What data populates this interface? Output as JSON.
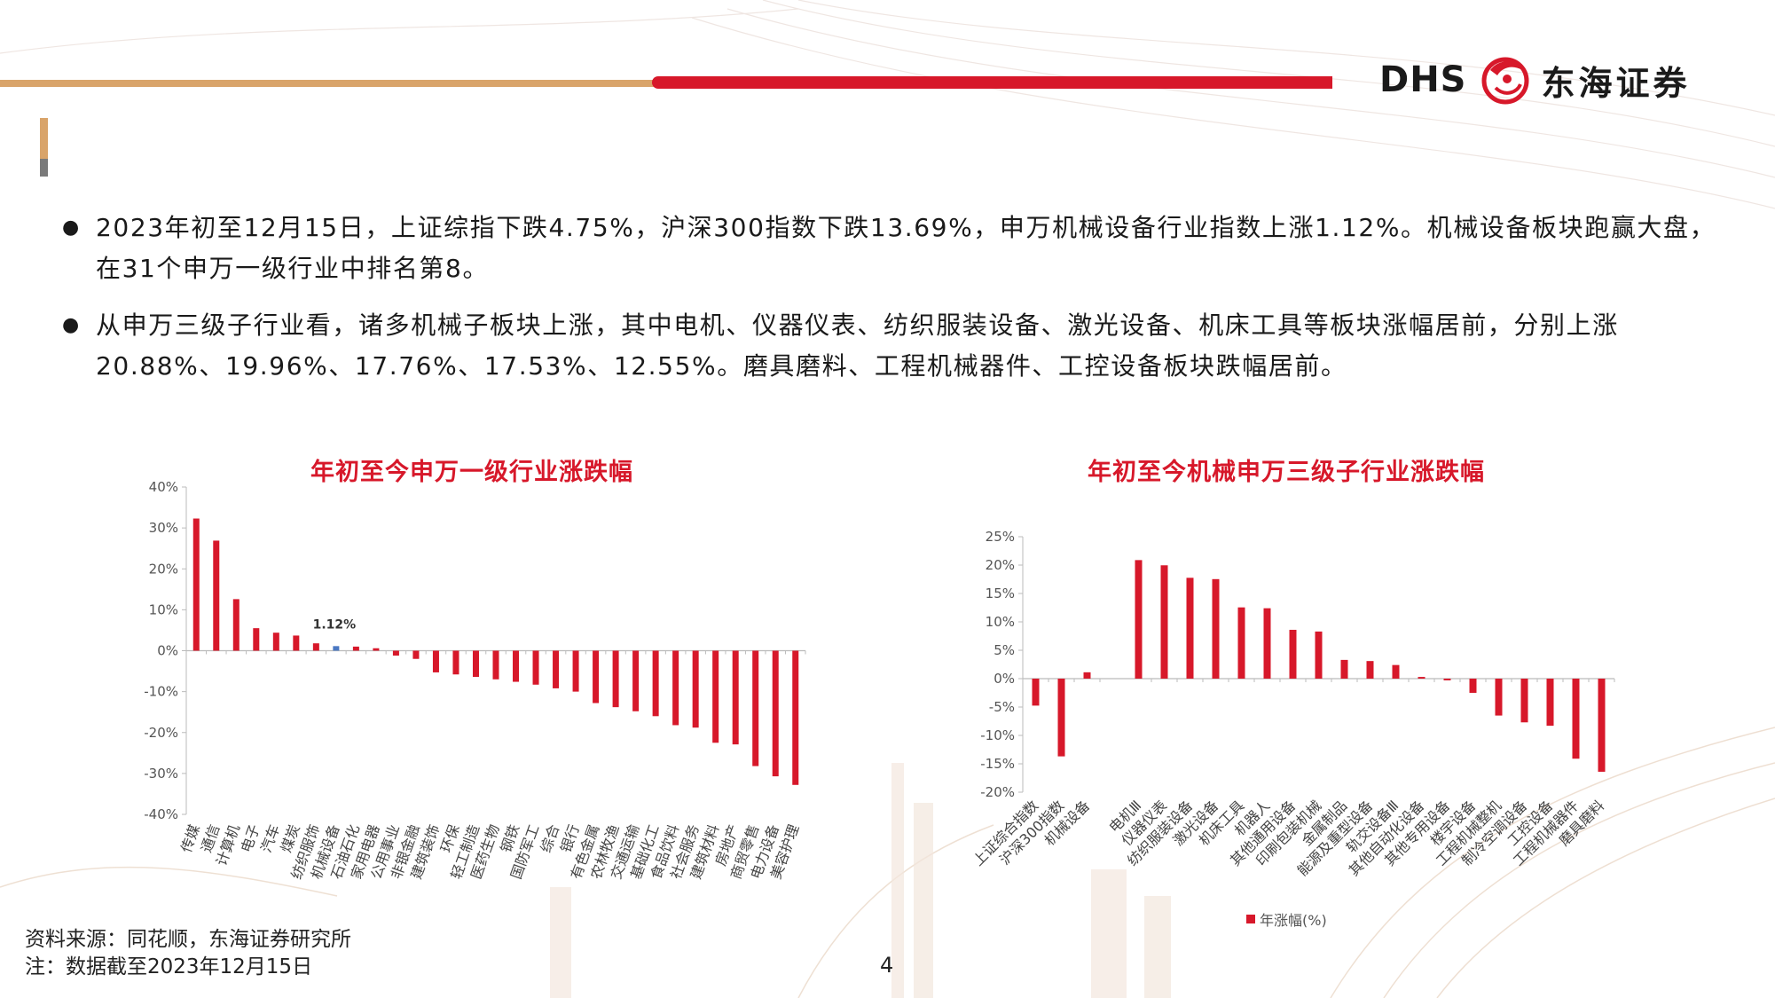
{
  "brand": {
    "dhs": "DHS",
    "name_cn": "东海证券"
  },
  "bullets": [
    "2023年初至12月15日，上证综指下跌4.75%，沪深300指数下跌13.69%，申万机械设备行业指数上涨1.12%。机械设备板块跑赢大盘，在31个申万一级行业中排名第8。",
    "从申万三级子行业看，诸多机械子板块上涨，其中电机、仪器仪表、纺织服装设备、激光设备、机床工具等板块涨幅居前，分别上涨20.88%、19.96%、17.76%、17.53%、12.55%。磨具磨料、工程机械器件、工控设备板块跌幅居前。"
  ],
  "footer": {
    "source": "资料来源：同花顺，东海证券研究所",
    "note": "注：数据截至2023年12月15日"
  },
  "page_number": "4",
  "colors": {
    "bar": "#d7182a",
    "highlight": "#4a78c2",
    "accent": "#d7182a"
  },
  "chart_data": [
    {
      "type": "bar",
      "title": "年初至今申万一级行业涨跌幅",
      "ylim": [
        -40,
        40
      ],
      "yticks": [
        "-40%",
        "-30%",
        "-20%",
        "-10%",
        "0%",
        "10%",
        "20%",
        "30%",
        "40%"
      ],
      "categories": [
        "传媒",
        "通信",
        "计算机",
        "电子",
        "汽车",
        "煤炭",
        "纺织服饰",
        "机械设备",
        "石油石化",
        "家用电器",
        "公用事业",
        "非银金融",
        "建筑装饰",
        "环保",
        "轻工制造",
        "医药生物",
        "钢铁",
        "国防军工",
        "综合",
        "银行",
        "有色金属",
        "农林牧渔",
        "交通运输",
        "基础化工",
        "食品饮料",
        "社会服务",
        "建筑材料",
        "房地产",
        "商贸零售",
        "电力设备",
        "美容护理"
      ],
      "values": [
        32.3,
        26.9,
        12.6,
        5.5,
        4.4,
        3.7,
        1.8,
        1.12,
        1.0,
        0.6,
        -1.2,
        -2.0,
        -5.3,
        -5.8,
        -6.4,
        -7.0,
        -7.6,
        -8.3,
        -9.2,
        -10.0,
        -12.8,
        -13.8,
        -14.8,
        -16.0,
        -18.2,
        -18.8,
        -22.5,
        -22.9,
        -28.2,
        -30.7,
        -32.8
      ],
      "highlight_index": 7,
      "data_label": "1.12%",
      "grid": false
    },
    {
      "type": "bar",
      "title": "年初至今机械申万三级子行业涨跌幅",
      "ylim": [
        -20,
        25
      ],
      "yticks": [
        "-20%",
        "-15%",
        "-10%",
        "-5%",
        "0%",
        "5%",
        "10%",
        "15%",
        "20%",
        "25%"
      ],
      "categories": [
        "上证综合指数",
        "沪深300指数",
        "机械设备",
        "",
        "电机Ⅲ",
        "仪器仪表",
        "纺织服装设备",
        "激光设备",
        "机床工具",
        "机器人",
        "其他通用设备",
        "印刷包装机械",
        "金属制品",
        "能源及重型设备",
        "轨交设备Ⅲ",
        "其他自动化设备",
        "其他专用设备",
        "楼宇设备",
        "工程机械整机",
        "制冷空调设备",
        "工控设备",
        "工程机械器件",
        "磨具磨料"
      ],
      "values": [
        -4.75,
        -13.69,
        1.12,
        null,
        20.88,
        19.96,
        17.76,
        17.53,
        12.55,
        12.4,
        8.6,
        8.3,
        3.3,
        3.1,
        2.4,
        0.3,
        -0.3,
        -2.5,
        -6.5,
        -7.7,
        -8.3,
        -14.1,
        -16.4
      ],
      "legend": "年涨幅(%)",
      "grid": false
    }
  ]
}
